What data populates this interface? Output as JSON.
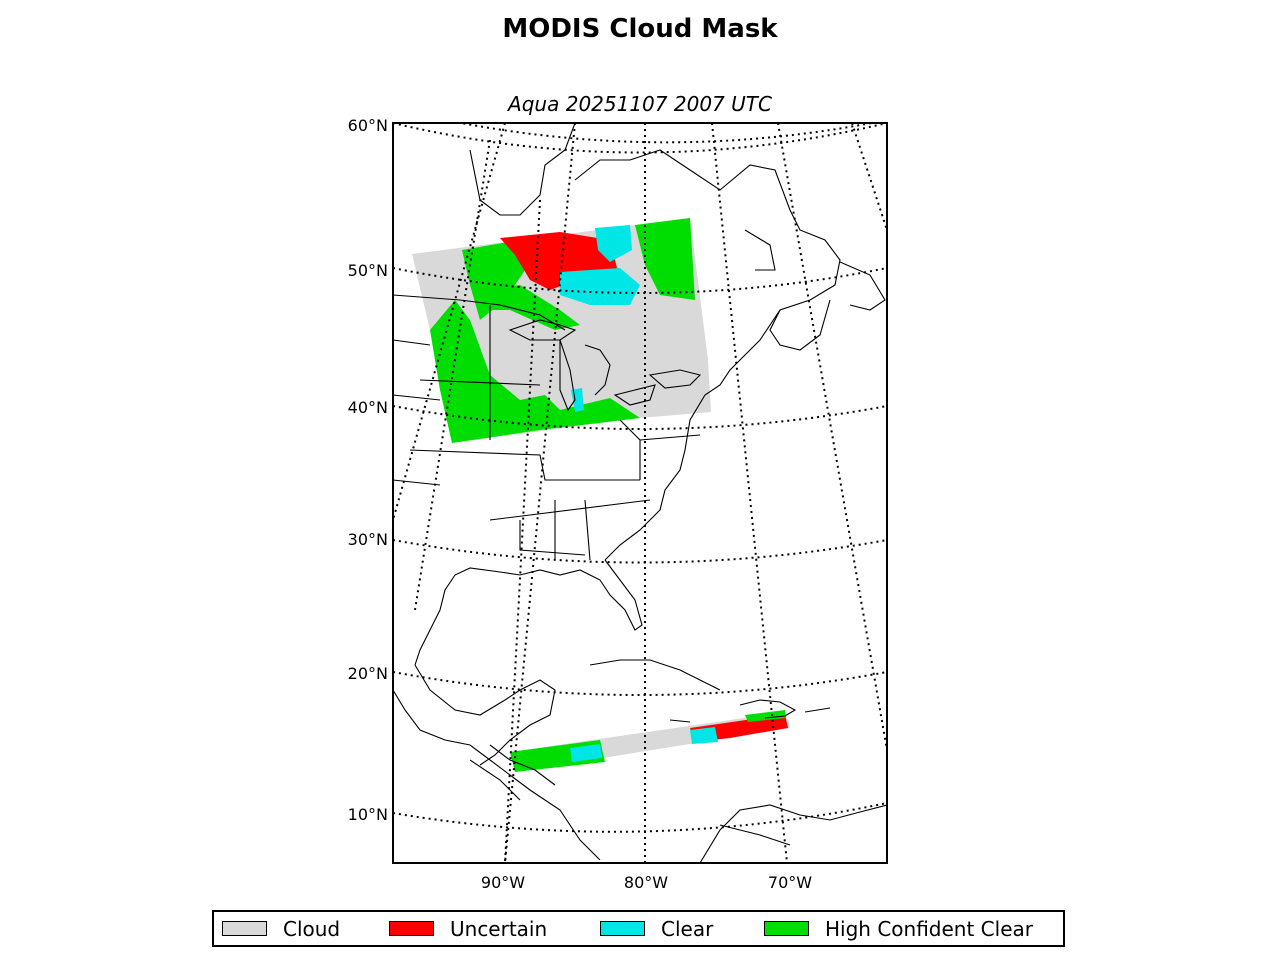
{
  "title": "MODIS Cloud Mask",
  "subtitle": "Aqua 20251107 2007 UTC",
  "colors": {
    "cloud": "#d9d9d9",
    "uncertain": "#ff0000",
    "clear": "#00e5e5",
    "high_confident_clear": "#00dd00",
    "coastline": "#000000",
    "background": "#ffffff"
  },
  "map": {
    "projection": "lambert-conformal-conic",
    "lat_labels": [
      "60°N",
      "50°N",
      "40°N",
      "30°N",
      "20°N",
      "10°N"
    ],
    "lon_labels": [
      "90°W",
      "80°W",
      "70°W"
    ],
    "graticule_style": "dotted",
    "satellite": "Aqua",
    "overpass_regions": [
      "Great Lakes / Midwest",
      "Caribbean / Central America"
    ]
  },
  "legend": {
    "items": [
      {
        "label": "Cloud",
        "color": "#d9d9d9"
      },
      {
        "label": "Uncertain",
        "color": "#ff0000"
      },
      {
        "label": "Clear",
        "color": "#00e5e5"
      },
      {
        "label": "High Confident Clear",
        "color": "#00dd00"
      }
    ]
  }
}
